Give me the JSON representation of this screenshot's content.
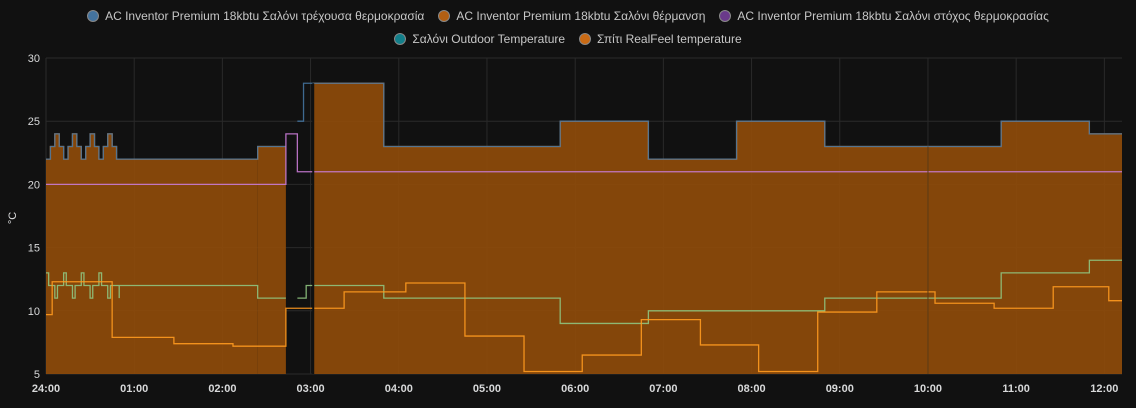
{
  "colors": {
    "hvac_current": "#44739e",
    "hvac_heat": "#ff7f0e",
    "hvac_target": "#9467bd",
    "outdoor": "#17becf",
    "realfeel": "#ff9a1f",
    "fill": "#8b4a0b",
    "grid": "#2a2a2a",
    "background": "#111111"
  },
  "legend": [
    {
      "label": "AC Inventor Premium 18kbtu Σαλόνι τρέχουσα θερμοκρασία",
      "color": "#44739e"
    },
    {
      "label": "AC Inventor Premium 18kbtu Σαλόνι θέρμανση",
      "color": "#b25f12"
    },
    {
      "label": "AC Inventor Premium 18kbtu Σαλόνι στόχος θερμοκρασίας",
      "color": "#6a3a8a"
    },
    {
      "label": "Σαλόνι Outdoor Temperature",
      "color": "#127f8a"
    },
    {
      "label": "Σπίτι RealFeel temperature",
      "color": "#c96a14"
    }
  ],
  "chart_data": {
    "type": "line",
    "ylabel": "°C",
    "xlabel": "",
    "ylim": [
      5,
      30
    ],
    "xlim": [
      0,
      12.2
    ],
    "yticks": [
      5,
      10,
      15,
      20,
      25,
      30
    ],
    "xticks": [
      {
        "v": 0,
        "label": "24:00"
      },
      {
        "v": 1,
        "label": "01:00"
      },
      {
        "v": 2,
        "label": "02:00"
      },
      {
        "v": 3,
        "label": "03:00"
      },
      {
        "v": 4,
        "label": "04:00"
      },
      {
        "v": 5,
        "label": "05:00"
      },
      {
        "v": 6,
        "label": "06:00"
      },
      {
        "v": 7,
        "label": "07:00"
      },
      {
        "v": 8,
        "label": "08:00"
      },
      {
        "v": 9,
        "label": "09:00"
      },
      {
        "v": 10,
        "label": "10:00"
      },
      {
        "v": 11,
        "label": "11:00"
      },
      {
        "v": 12,
        "label": "12:00"
      }
    ],
    "heating_fill": [
      [
        0,
        2.72,
        22
      ],
      [
        3.03,
        12.2,
        23
      ]
    ],
    "series": [
      {
        "name": "AC Inventor Premium 18kbtu Σαλόνι τρέχουσα θερμοκρασία",
        "color": "#44739e",
        "step": true,
        "points": [
          [
            0,
            22
          ],
          [
            0.05,
            23
          ],
          [
            0.1,
            24
          ],
          [
            0.15,
            23
          ],
          [
            0.2,
            22
          ],
          [
            0.25,
            23
          ],
          [
            0.3,
            24
          ],
          [
            0.35,
            23
          ],
          [
            0.4,
            22
          ],
          [
            0.45,
            23
          ],
          [
            0.5,
            24
          ],
          [
            0.55,
            23
          ],
          [
            0.6,
            22
          ],
          [
            0.65,
            23
          ],
          [
            0.7,
            24
          ],
          [
            0.75,
            23
          ],
          [
            0.8,
            22
          ],
          [
            2.4,
            23
          ],
          [
            2.72,
            null
          ],
          [
            2.85,
            25
          ],
          [
            2.92,
            28
          ],
          [
            3.83,
            23
          ],
          [
            5.83,
            25
          ],
          [
            6.83,
            22
          ],
          [
            7.83,
            25
          ],
          [
            8.83,
            23
          ],
          [
            10.83,
            25
          ],
          [
            11.83,
            24
          ],
          [
            12.2,
            24
          ]
        ]
      },
      {
        "name": "AC Inventor Premium 18kbtu Σαλόνι θέρμανση",
        "color": "#ff7f0e",
        "step": true,
        "points": [
          [
            0,
            22
          ],
          [
            0.05,
            23
          ],
          [
            0.1,
            24
          ],
          [
            0.15,
            23
          ],
          [
            0.2,
            22
          ],
          [
            0.25,
            23
          ],
          [
            0.3,
            24
          ],
          [
            0.35,
            23
          ],
          [
            0.4,
            22
          ],
          [
            0.45,
            23
          ],
          [
            0.5,
            24
          ],
          [
            0.55,
            23
          ],
          [
            0.6,
            22
          ],
          [
            0.65,
            23
          ],
          [
            0.7,
            24
          ],
          [
            0.75,
            23
          ],
          [
            0.8,
            22
          ],
          [
            2.4,
            23
          ],
          [
            2.72,
            null
          ],
          [
            3.03,
            28
          ],
          [
            3.83,
            23
          ],
          [
            5.83,
            25
          ],
          [
            6.83,
            22
          ],
          [
            7.83,
            25
          ],
          [
            8.83,
            23
          ],
          [
            10.83,
            25
          ],
          [
            11.83,
            24
          ],
          [
            12.2,
            24
          ]
        ]
      },
      {
        "name": "AC Inventor Premium 18kbtu Σαλόνι στόχος θερμοκρασίας",
        "color": "#c97bd6",
        "step": true,
        "points": [
          [
            0,
            20
          ],
          [
            2.72,
            24
          ],
          [
            2.85,
            21
          ],
          [
            12.2,
            21
          ]
        ]
      },
      {
        "name": "Σαλόνι Outdoor Temperature",
        "color": "#8fc47f",
        "step": true,
        "points": [
          [
            0,
            13
          ],
          [
            0.03,
            12
          ],
          [
            0.1,
            11
          ],
          [
            0.13,
            12
          ],
          [
            0.2,
            13
          ],
          [
            0.23,
            12
          ],
          [
            0.3,
            11
          ],
          [
            0.33,
            12
          ],
          [
            0.4,
            13
          ],
          [
            0.43,
            12
          ],
          [
            0.5,
            11
          ],
          [
            0.53,
            12
          ],
          [
            0.6,
            13
          ],
          [
            0.63,
            12
          ],
          [
            0.7,
            11
          ],
          [
            0.73,
            12
          ],
          [
            0.83,
            11
          ],
          [
            0.83,
            12
          ],
          [
            2.4,
            11
          ],
          [
            2.72,
            null
          ],
          [
            2.85,
            11
          ],
          [
            2.95,
            12
          ],
          [
            3.83,
            11
          ],
          [
            5.83,
            9
          ],
          [
            6.83,
            10
          ],
          [
            8.83,
            11
          ],
          [
            10.83,
            13
          ],
          [
            11.83,
            14
          ],
          [
            12.2,
            14
          ]
        ]
      },
      {
        "name": "Σπίτι RealFeel temperature",
        "color": "#ff9a1f",
        "step": true,
        "points": [
          [
            0,
            9.7
          ],
          [
            0.07,
            12.3
          ],
          [
            0.75,
            7.9
          ],
          [
            1.45,
            7.4
          ],
          [
            2.12,
            7.2
          ],
          [
            2.72,
            10.2
          ],
          [
            3.38,
            11.5
          ],
          [
            4.08,
            12.2
          ],
          [
            4.75,
            8.0
          ],
          [
            5.42,
            5.2
          ],
          [
            6.08,
            6.5
          ],
          [
            6.75,
            9.3
          ],
          [
            7.42,
            7.3
          ],
          [
            8.08,
            5.2
          ],
          [
            8.75,
            9.9
          ],
          [
            9.42,
            11.5
          ],
          [
            10.08,
            10.6
          ],
          [
            10.75,
            10.2
          ],
          [
            11.42,
            11.9
          ],
          [
            12.05,
            10.8
          ],
          [
            12.2,
            10.8
          ]
        ]
      }
    ]
  }
}
